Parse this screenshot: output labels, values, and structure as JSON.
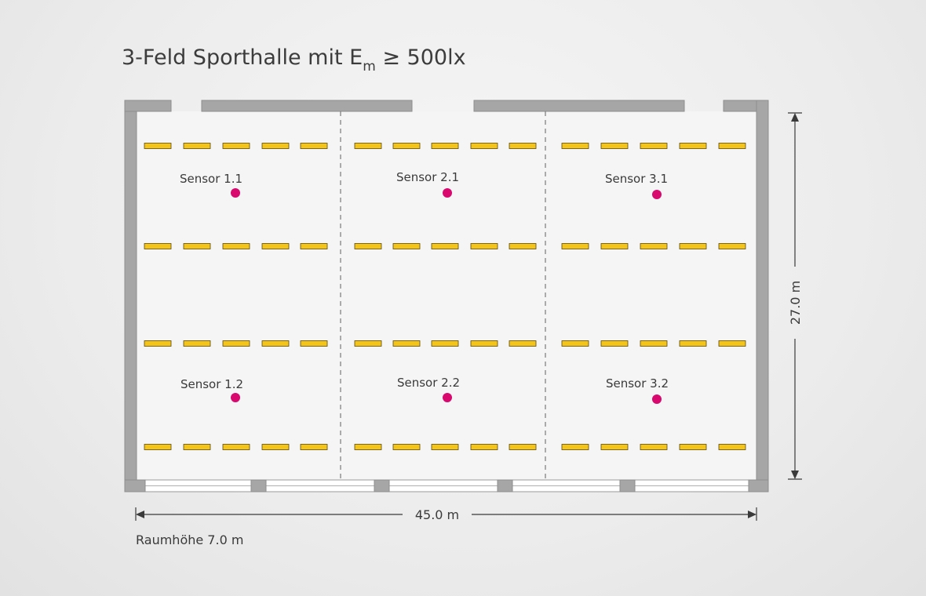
{
  "title": {
    "prefix": "3-Feld Sporthalle mit E",
    "subscript": "m",
    "suffix": " ≥ 500lx"
  },
  "sensors": [
    {
      "label": "Sensor 1.1"
    },
    {
      "label": "Sensor 2.1"
    },
    {
      "label": "Sensor 3.1"
    },
    {
      "label": "Sensor 1.2"
    },
    {
      "label": "Sensor 2.2"
    },
    {
      "label": "Sensor 3.2"
    }
  ],
  "dimensions": {
    "width_label": "45.0 m",
    "depth_label": "27.0 m",
    "room_height_label": "Raumhöhe 7.0 m"
  },
  "colors": {
    "wall": "#a6a6a6",
    "luminaire": "#f5c419",
    "luminaire_outline": "#5a4a10",
    "sensor": "#d8086e",
    "divider": "#7a7a7a",
    "floor": "#f4f4f4"
  }
}
